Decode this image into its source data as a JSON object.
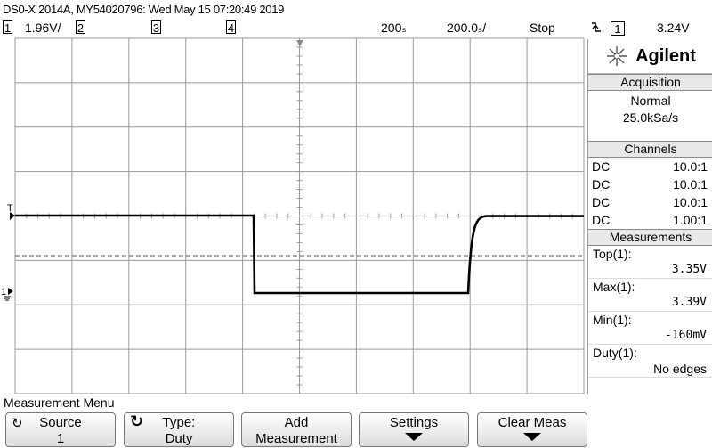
{
  "title": "DS0-X 2014A, MY54020796: Wed May 15 07:20:49 2019",
  "status": {
    "ch1_num": "1",
    "ch1_scale": "1.96V/",
    "ch2_num": "2",
    "ch3_num": "3",
    "ch4_num": "4",
    "delay": "200ₛ",
    "timebase": "200.0ₛ/",
    "run_state": "Stop",
    "trigger_icon": "trigger-edge-falling-icon",
    "trigger_source": "1",
    "trigger_level": "3.24V"
  },
  "waveform": {
    "trigger_marker": "T",
    "ground_marker": "1",
    "trace_color": "#000000",
    "grid_color": "#9a9a9a"
  },
  "panel": {
    "brand": "Agilent",
    "acquisition": {
      "header": "Acquisition",
      "mode": "Normal",
      "rate": "25.0kSa/s"
    },
    "channels": {
      "header": "Channels",
      "rows": [
        {
          "coupling": "DC",
          "probe": "10.0:1"
        },
        {
          "coupling": "DC",
          "probe": "10.0:1"
        },
        {
          "coupling": "DC",
          "probe": "10.0:1"
        },
        {
          "coupling": "DC",
          "probe": "1.00:1"
        }
      ]
    },
    "measurements": {
      "header": "Measurements",
      "items": [
        {
          "label": "Top(1):",
          "value": "3.35V"
        },
        {
          "label": "Max(1):",
          "value": "3.39V"
        },
        {
          "label": "Min(1):",
          "value": "-160mV"
        },
        {
          "label": "Duty(1):",
          "value": "No edges"
        }
      ]
    }
  },
  "menu": {
    "title": "Measurement Menu",
    "softkeys": [
      {
        "line1": "Source",
        "line2": "1"
      },
      {
        "line1": "Type:",
        "line2": "Duty"
      },
      {
        "line1": "Add",
        "line2": "Measurement"
      },
      {
        "line1": "Settings",
        "line2": ""
      },
      {
        "line1": "Clear Meas",
        "line2": ""
      }
    ]
  }
}
